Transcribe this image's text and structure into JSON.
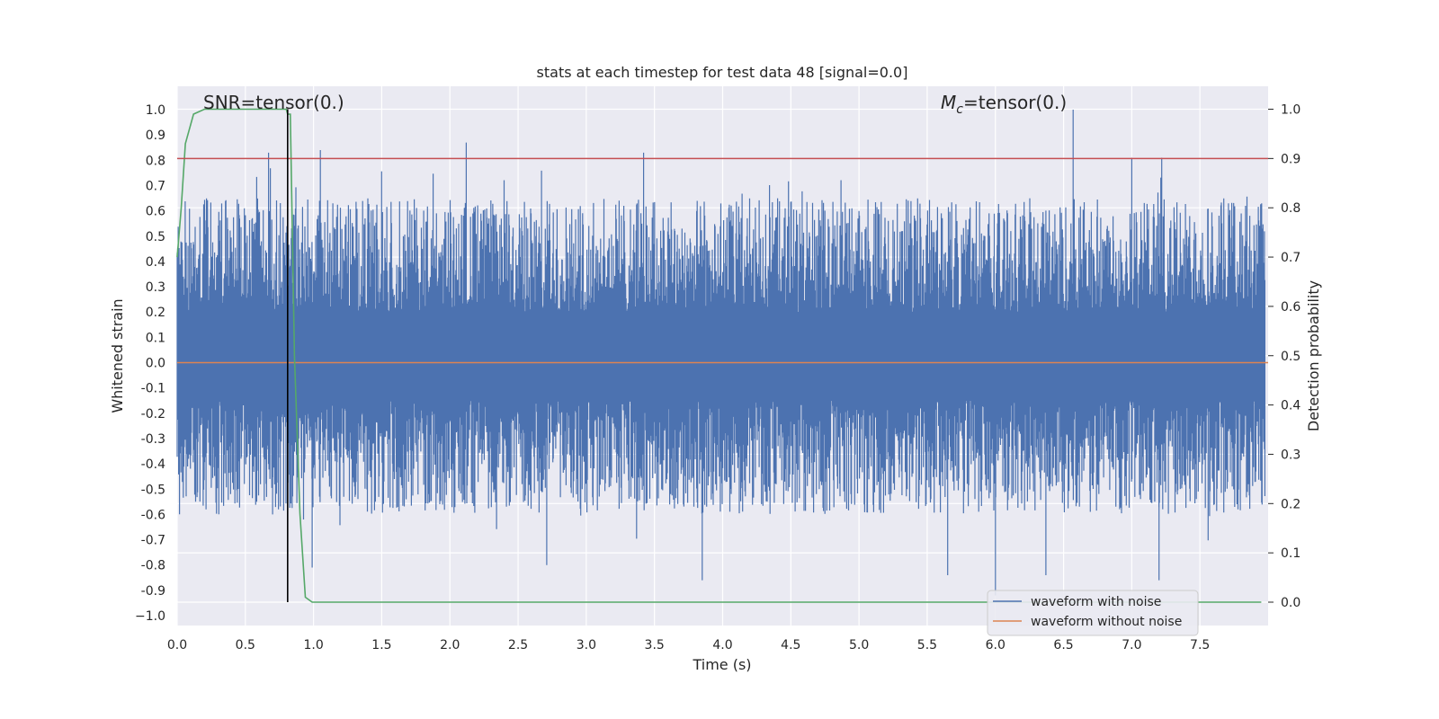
{
  "chart_data": {
    "type": "line",
    "title": "stats at each timestep for test data 48 [signal=0.0]",
    "xlabel": "Time (s)",
    "ylabel": "Whitened strain",
    "y2label": "Detection probability",
    "xlim": [
      0.0,
      8.0
    ],
    "ylim": [
      -1.05,
      1.05
    ],
    "y2lim": [
      -0.05,
      1.05
    ],
    "xticks": [
      "0.0",
      "0.5",
      "1.0",
      "1.5",
      "2.0",
      "2.5",
      "3.0",
      "3.5",
      "4.0",
      "4.5",
      "5.0",
      "5.5",
      "6.0",
      "6.5",
      "7.0",
      "7.5"
    ],
    "yticks": [
      "1.0",
      "0.9",
      "0.8",
      "0.7",
      "0.6",
      "0.5",
      "0.4",
      "0.3",
      "0.2",
      "0.1",
      "0.0",
      "-0.1",
      "-0.2",
      "-0.3",
      "-0.4",
      "-0.5",
      "-0.6",
      "-0.7",
      "-0.8",
      "-0.9",
      "−1.0"
    ],
    "y2ticks": [
      "1.0",
      "0.9",
      "0.8",
      "0.7",
      "0.6",
      "0.5",
      "0.4",
      "0.3",
      "0.2",
      "0.1",
      "0.0"
    ],
    "annotations": {
      "snr": "SNR=tensor(0.)",
      "mc_symbol": "M",
      "mc_sub": "c",
      "mc_rest": "=tensor(0.)"
    },
    "legend": {
      "placement": "lower-right",
      "entries": [
        "waveform with noise",
        "waveform without noise"
      ]
    },
    "series": [
      {
        "name": "waveform with noise",
        "color": "#4c72b0",
        "axis": "left",
        "description_range": [
          -0.95,
          1.0
        ],
        "spikes": [
          {
            "x": 0.67,
            "y": 0.83
          },
          {
            "x": 1.05,
            "y": 0.84
          },
          {
            "x": 2.12,
            "y": 0.87
          },
          {
            "x": 3.42,
            "y": 0.83
          },
          {
            "x": 6.57,
            "y": 1.0
          },
          {
            "x": 7.0,
            "y": 0.81
          },
          {
            "x": 7.22,
            "y": 0.81
          },
          {
            "x": 0.7,
            "y": -0.6
          },
          {
            "x": 0.99,
            "y": -0.81
          },
          {
            "x": 2.71,
            "y": -0.8
          },
          {
            "x": 3.85,
            "y": -0.86
          },
          {
            "x": 5.65,
            "y": -0.84
          },
          {
            "x": 6.0,
            "y": -0.92
          },
          {
            "x": 6.37,
            "y": -0.84
          },
          {
            "x": 7.2,
            "y": -0.86
          }
        ]
      },
      {
        "name": "waveform without noise",
        "color": "#dd8452",
        "axis": "left",
        "constant": 0.0
      },
      {
        "name": "",
        "color": "#55a868",
        "axis": "right",
        "x": [
          0.0,
          0.03,
          0.06,
          0.12,
          0.2,
          0.3,
          0.5,
          0.7,
          0.8,
          0.81,
          0.83,
          0.86,
          0.9,
          0.94,
          0.99,
          1.05,
          1.2,
          1.6,
          2.2,
          2.7,
          3.2,
          3.8,
          4.0,
          5.0,
          6.0,
          7.0,
          7.95
        ],
        "y": [
          0.7,
          0.8,
          0.93,
          0.99,
          1.0,
          1.0,
          1.0,
          1.0,
          1.0,
          0.99,
          0.99,
          0.5,
          0.18,
          0.01,
          0.0,
          -0.0,
          0.0,
          0.0,
          0.0,
          0.0,
          0.0,
          0.0,
          0.0,
          0.0,
          0.0,
          0.0,
          0.0
        ]
      }
    ],
    "hlines": [
      {
        "axis": "right",
        "y": 0.9,
        "color": "#c44e52"
      }
    ],
    "vlines": [
      {
        "x": 0.81,
        "y2_from": 0.0,
        "y2_to": 1.0,
        "color": "#000000"
      }
    ],
    "grid": true,
    "background": "#eaeaf2"
  }
}
